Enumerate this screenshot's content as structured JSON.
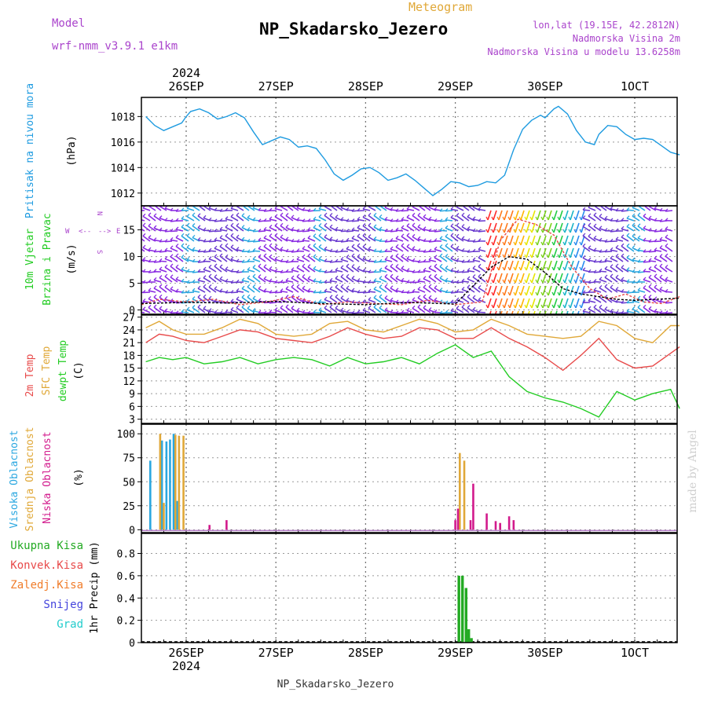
{
  "header": {
    "model_label": "Model",
    "model_value": "wrf-nmm_v3.9.1 e1km",
    "meteogram_label": "Meteogram",
    "title": "NP_Skadarsko_Jezero",
    "lonlat": "lon,lat (19.15E, 42.2812N)",
    "altitude": "Nadmorska Visina 2m",
    "model_altitude": "Nadmorska Visina u modelu 13.6258m",
    "year": "2024"
  },
  "footer": {
    "station": "NP_Skadarsko_Jezero",
    "year": "2024",
    "watermark": "made by Angel"
  },
  "dates": [
    "26SEP",
    "27SEP",
    "28SEP",
    "29SEP",
    "30SEP",
    "1OCT"
  ],
  "colors": {
    "pressure": "#1e9be0",
    "temp2m": "#e84a4a",
    "sfc": "#e0a838",
    "dewpt": "#22cc22",
    "high_cloud": "#2aa7e0",
    "mid_cloud": "#e0a838",
    "low_cloud": "#d21a8c",
    "total_precip": "#22aa22",
    "conv_precip": "#e84a4a",
    "frozen_precip": "#f07c2a",
    "snow": "#4444dd",
    "graupel": "#22cccc",
    "wind_label": "#22cc22",
    "wind_dir": "#aa44cc",
    "model_label": "#aa44cc"
  },
  "panels": {
    "pressure": {
      "ylabel": "Pritisak na nivou mora",
      "unit": "(hPa)"
    },
    "wind": {
      "ylabel1": "10m Vjetar",
      "ylabel2": "Brzina i Pravac",
      "unit": "(m/s)",
      "compass_n": "N",
      "compass_s": "S",
      "compass_w": "W",
      "compass_e": "E",
      "compass_w_arrow": "<--",
      "compass_e_arrow": "-->"
    },
    "temperature": {
      "label_2m": "2m Temp",
      "label_sfc": "SFC Temp",
      "label_dew": "dewpt Temp",
      "unit": "(C)"
    },
    "cloud": {
      "label_high": "Visoka Oblacnost",
      "label_mid": "Srednja Oblacnost",
      "label_low": "Niska Oblacnost",
      "unit": "(%)"
    },
    "precip": {
      "legend": [
        "Ukupna Kisa",
        "Konvek.Kisa",
        "Zaledj.Kisa",
        "Snijeg",
        "Grad"
      ],
      "ylabel": "1hr Precip (mm)"
    }
  },
  "chart_data": [
    {
      "type": "line",
      "name": "pressure",
      "x_unit": "days from 26SEP 00UTC",
      "ylim": [
        1011,
        1019.5
      ],
      "yticks": [
        1012,
        1014,
        1016,
        1018
      ],
      "series": [
        {
          "name": "",
          "color_key": "pressure",
          "x": [
            -0.45,
            -0.35,
            -0.25,
            -0.15,
            -0.05,
            0.0,
            0.05,
            0.15,
            0.25,
            0.35,
            0.45,
            0.55,
            0.65,
            0.75,
            0.85,
            0.95,
            1.05,
            1.15,
            1.25,
            1.35,
            1.45,
            1.55,
            1.65,
            1.75,
            1.85,
            1.95,
            2.05,
            2.15,
            2.25,
            2.35,
            2.45,
            2.55,
            2.65,
            2.75,
            2.85,
            2.95,
            3.05,
            3.15,
            3.25,
            3.35,
            3.45,
            3.55,
            3.65,
            3.75,
            3.85,
            3.95,
            4.0,
            4.1,
            4.15,
            4.25,
            4.35,
            4.45,
            4.55,
            4.6,
            4.7,
            4.8,
            4.9,
            5.0,
            5.1,
            5.2,
            5.3,
            5.4,
            5.5
          ],
          "y": [
            1018,
            1017.3,
            1016.9,
            1017.2,
            1017.5,
            1018.0,
            1018.4,
            1018.6,
            1018.3,
            1017.8,
            1018.0,
            1018.3,
            1017.9,
            1016.8,
            1015.8,
            1016.1,
            1016.4,
            1016.2,
            1015.6,
            1015.7,
            1015.5,
            1014.6,
            1013.5,
            1013.0,
            1013.4,
            1013.9,
            1014.0,
            1013.6,
            1013.0,
            1013.2,
            1013.5,
            1013.0,
            1012.4,
            1011.8,
            1012.3,
            1012.9,
            1012.8,
            1012.5,
            1012.6,
            1012.9,
            1012.8,
            1013.4,
            1015.4,
            1017.0,
            1017.7,
            1018.1,
            1017.9,
            1018.6,
            1018.8,
            1018.2,
            1016.9,
            1016.0,
            1015.8,
            1016.6,
            1017.3,
            1017.2,
            1016.6,
            1016.2,
            1016.3,
            1016.2,
            1015.7,
            1015.2,
            1015.0
          ]
        }
      ]
    },
    {
      "type": "line",
      "name": "wind",
      "x_unit": "days from 26SEP 00UTC",
      "ylim": [
        -0.8,
        19.5
      ],
      "yticks": [
        0,
        5,
        10,
        15
      ],
      "series": [
        {
          "name": "",
          "color_key": "conv_precip",
          "dashed": true,
          "x": [
            -0.5,
            -0.3,
            0.0,
            0.3,
            0.6,
            0.9,
            1.2,
            1.5,
            1.8,
            2.1,
            2.4,
            2.7,
            3.0,
            3.3,
            3.5,
            3.7,
            3.9,
            4.1,
            4.3,
            4.5,
            4.7,
            4.9,
            5.1,
            5.3,
            5.5
          ],
          "y": [
            1.0,
            2.0,
            1.5,
            2.0,
            1.0,
            1.5,
            2.5,
            1.0,
            1.5,
            1.2,
            1.0,
            1.8,
            1.0,
            1.5,
            13,
            17,
            16,
            14,
            8,
            4,
            2,
            3,
            1.5,
            1.2,
            2.5
          ]
        },
        {
          "name": "",
          "color_key": "black",
          "dashed": true,
          "x": [
            -0.5,
            0.0,
            0.5,
            1.0,
            1.5,
            2.0,
            2.5,
            3.0,
            3.4,
            3.6,
            3.8,
            4.0,
            4.2,
            4.4,
            4.6,
            4.8,
            5.0,
            5.5
          ],
          "y": [
            1.2,
            1.4,
            1.3,
            1.6,
            1.2,
            1.0,
            1.4,
            1.1,
            8,
            10,
            9.5,
            7,
            4,
            3,
            2.5,
            2,
            1.8,
            2.2
          ]
        }
      ]
    },
    {
      "type": "line",
      "name": "temperature",
      "x_unit": "days from 26SEP 00UTC",
      "ylim": [
        2,
        27.5
      ],
      "yticks": [
        3,
        6,
        9,
        12,
        15,
        18,
        21,
        24,
        27
      ],
      "series": [
        {
          "name": "",
          "color_key": "sfc",
          "x": [
            -0.45,
            -0.3,
            -0.15,
            0.0,
            0.2,
            0.4,
            0.6,
            0.8,
            1.0,
            1.2,
            1.4,
            1.6,
            1.8,
            2.0,
            2.2,
            2.4,
            2.6,
            2.8,
            3.0,
            3.2,
            3.4,
            3.6,
            3.8,
            4.0,
            4.2,
            4.4,
            4.6,
            4.8,
            5.0,
            5.2,
            5.4,
            5.5
          ],
          "y": [
            24.5,
            26.0,
            24.0,
            23.0,
            23.0,
            24.5,
            26.5,
            25.5,
            23.0,
            22.5,
            23.0,
            25.5,
            26.0,
            24.0,
            23.5,
            25.0,
            26.5,
            25.5,
            23.5,
            24.0,
            26.5,
            25.0,
            23.0,
            22.5,
            22.0,
            22.5,
            26.0,
            25.0,
            22.0,
            21.0,
            25.0,
            25.0
          ]
        },
        {
          "name": "",
          "color_key": "temp2m",
          "x": [
            -0.45,
            -0.3,
            -0.15,
            0.0,
            0.2,
            0.4,
            0.6,
            0.8,
            1.0,
            1.2,
            1.4,
            1.6,
            1.8,
            2.0,
            2.2,
            2.4,
            2.6,
            2.8,
            3.0,
            3.2,
            3.4,
            3.6,
            3.8,
            4.0,
            4.2,
            4.4,
            4.6,
            4.8,
            5.0,
            5.2,
            5.4,
            5.5
          ],
          "y": [
            21.0,
            23.0,
            22.5,
            21.5,
            21.0,
            22.5,
            24.0,
            23.5,
            22.0,
            21.5,
            21.0,
            22.5,
            24.5,
            23.0,
            22.0,
            22.5,
            24.5,
            24.0,
            22.0,
            22.0,
            24.5,
            22.0,
            20.0,
            17.5,
            14.5,
            18.0,
            22.0,
            17.0,
            15.0,
            15.5,
            18.5,
            20.0
          ]
        },
        {
          "name": "",
          "color_key": "dewpt",
          "x": [
            -0.45,
            -0.3,
            -0.15,
            0.0,
            0.2,
            0.4,
            0.6,
            0.8,
            1.0,
            1.2,
            1.4,
            1.6,
            1.8,
            2.0,
            2.2,
            2.4,
            2.6,
            2.8,
            3.0,
            3.2,
            3.4,
            3.6,
            3.8,
            4.0,
            4.2,
            4.4,
            4.6,
            4.8,
            5.0,
            5.2,
            5.4,
            5.5
          ],
          "y": [
            16.5,
            17.5,
            17.0,
            17.5,
            16.0,
            16.5,
            17.5,
            16.0,
            17.0,
            17.5,
            17.0,
            15.5,
            17.5,
            16.0,
            16.5,
            17.5,
            16.0,
            18.5,
            20.5,
            17.5,
            19.0,
            13.0,
            9.5,
            8.0,
            7.0,
            5.5,
            3.5,
            9.5,
            7.5,
            9.0,
            10.0,
            5.5
          ]
        }
      ]
    },
    {
      "type": "bar",
      "name": "cloud",
      "x_unit": "days from 26SEP 00UTC",
      "ylim": [
        -3,
        110
      ],
      "yticks": [
        0,
        25,
        50,
        75,
        100
      ],
      "series": [
        {
          "name": "",
          "color_key": "high_cloud",
          "x": [
            -0.4,
            -0.27,
            -0.22,
            -0.18,
            -0.14,
            -0.1
          ],
          "y": [
            72,
            93,
            92,
            94,
            100,
            30
          ]
        },
        {
          "name": "",
          "color_key": "mid_cloud",
          "x": [
            -0.29,
            -0.25,
            -0.12,
            -0.08,
            -0.03,
            3.05,
            3.1,
            3.5
          ],
          "y": [
            100,
            28,
            99,
            98,
            98,
            80,
            72,
            7
          ]
        },
        {
          "name": "",
          "color_key": "low_cloud",
          "x": [
            0.26,
            0.45,
            3.0,
            3.03,
            3.17,
            3.2,
            3.35,
            3.45,
            3.5,
            3.6,
            3.65
          ],
          "y": [
            5,
            10,
            10,
            22,
            10,
            48,
            17,
            9,
            7,
            14,
            10
          ]
        }
      ]
    },
    {
      "type": "bar",
      "name": "precip",
      "x_unit": "days from 26SEP 00UTC",
      "ylim": [
        0,
        0.98
      ],
      "yticks": [
        0,
        0.2,
        0.4,
        0.6,
        0.8
      ],
      "series": [
        {
          "name": "",
          "color_key": "total_precip",
          "x": [
            3.04,
            3.08,
            3.12,
            3.15,
            3.18
          ],
          "y": [
            0.6,
            0.6,
            0.49,
            0.12,
            0.04
          ]
        }
      ]
    }
  ]
}
